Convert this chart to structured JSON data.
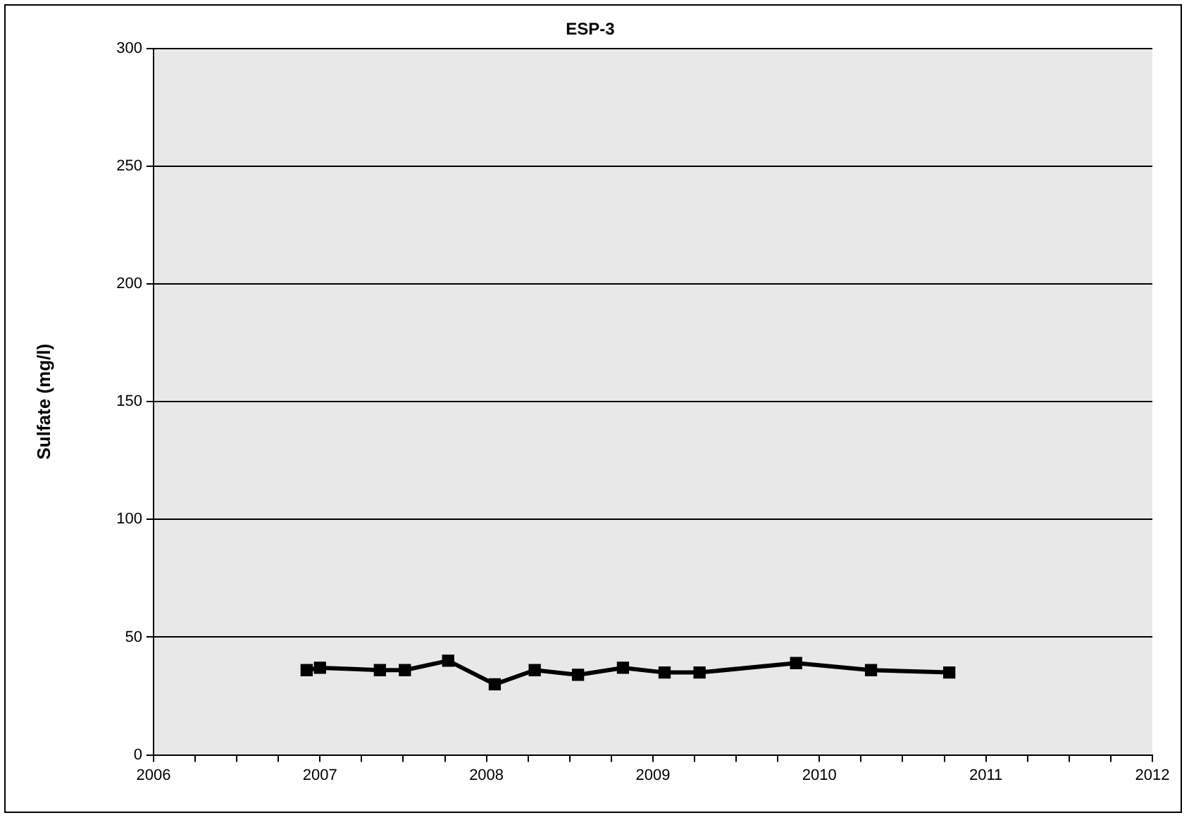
{
  "chart_data": {
    "type": "line",
    "title": "ESP-3",
    "ylabel": "Sulfate (mg/l)",
    "x": [
      2006.92,
      2007.0,
      2007.36,
      2007.51,
      2007.77,
      2008.05,
      2008.29,
      2008.55,
      2008.82,
      2009.07,
      2009.28,
      2009.86,
      2010.31,
      2010.78
    ],
    "series": [
      {
        "color": "#000000",
        "values": [
          36,
          37,
          36,
          36,
          40,
          30,
          36,
          34,
          37,
          35,
          35,
          39,
          36,
          35
        ]
      }
    ],
    "xlim": [
      2006,
      2012
    ],
    "xticks": [
      2006,
      {
        "value": 2006.25,
        "label": null
      },
      {
        "value": 2006.5,
        "label": null
      },
      {
        "value": 2006.75,
        "label": null
      },
      2007,
      {
        "value": 2007.25,
        "label": null
      },
      {
        "value": 2007.5,
        "label": null
      },
      {
        "value": 2007.75,
        "label": null
      },
      2008,
      {
        "value": 2008.25,
        "label": null
      },
      {
        "value": 2008.5,
        "label": null
      },
      {
        "value": 2008.75,
        "label": null
      },
      2009,
      {
        "value": 2009.25,
        "label": null
      },
      {
        "value": 2009.5,
        "label": null
      },
      {
        "value": 2009.75,
        "label": null
      },
      2010,
      {
        "value": 2010.25,
        "label": null
      },
      {
        "value": 2010.5,
        "label": null
      },
      {
        "value": 2010.75,
        "label": null
      },
      2011,
      {
        "value": 2011.25,
        "label": null
      },
      {
        "value": 2011.5,
        "label": null
      },
      {
        "value": 2011.75,
        "label": null
      },
      2012
    ],
    "ylim": [
      0,
      300
    ],
    "yticks": [
      0,
      50,
      100,
      150,
      200,
      250,
      300
    ],
    "grid": "y",
    "legend": false,
    "marker": "square",
    "line_style": "solid"
  }
}
